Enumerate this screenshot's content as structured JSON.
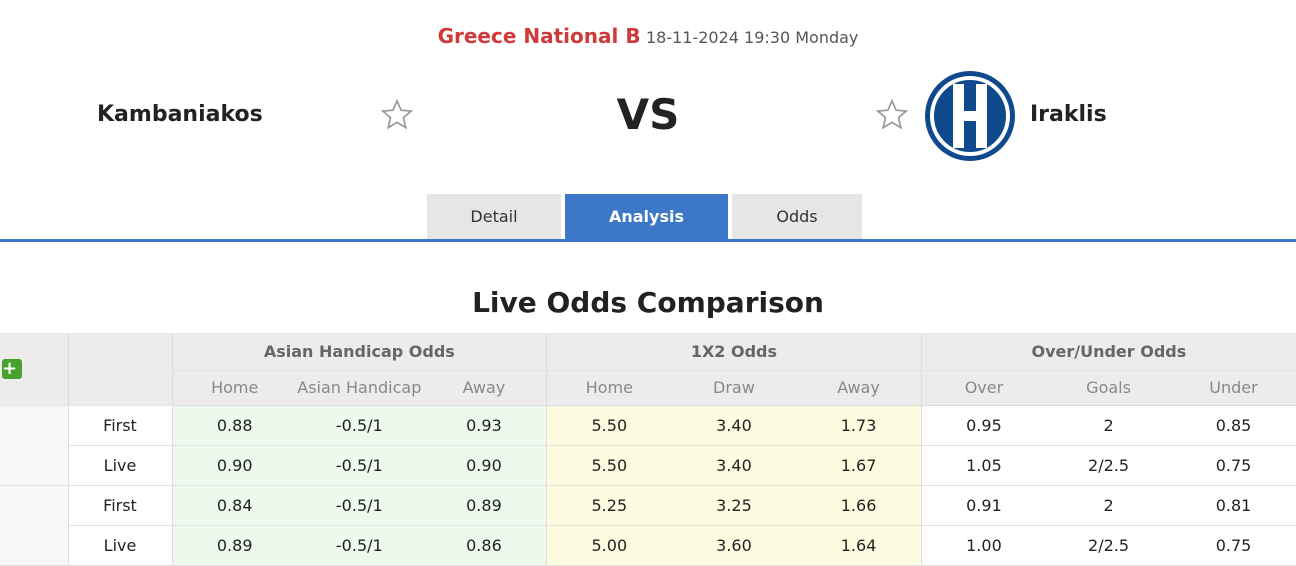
{
  "match": {
    "league": "Greece National B",
    "datetime": "18-11-2024 19:30 Monday",
    "home": "Kambaniakos",
    "away": "Iraklis",
    "vs": "VS"
  },
  "tabs": [
    {
      "label": "Detail"
    },
    {
      "label": "Analysis",
      "active": true
    },
    {
      "label": "Odds"
    }
  ],
  "section_title": "Live Odds Comparison",
  "table": {
    "groups": [
      "Asian Handicap Odds",
      "1X2 Odds",
      "Over/Under Odds"
    ],
    "subheaders": [
      "Home",
      "Asian Handicap",
      "Away",
      "Home",
      "Draw",
      "Away",
      "Over",
      "Goals",
      "Under"
    ],
    "rows": [
      {
        "type": "First",
        "values": [
          "0.88",
          "-0.5/1",
          "0.93",
          "5.50",
          "3.40",
          "1.73",
          "0.95",
          "2",
          "0.85"
        ]
      },
      {
        "type": "Live",
        "values": [
          "0.90",
          "-0.5/1",
          "0.90",
          "5.50",
          "3.40",
          "1.67",
          "1.05",
          "2/2.5",
          "0.75"
        ]
      },
      {
        "type": "First",
        "values": [
          "0.84",
          "-0.5/1",
          "0.89",
          "5.25",
          "3.25",
          "1.66",
          "0.91",
          "2",
          "0.81"
        ]
      },
      {
        "type": "Live",
        "values": [
          "0.89",
          "-0.5/1",
          "0.86",
          "5.00",
          "3.60",
          "1.64",
          "1.00",
          "2/2.5",
          "0.75"
        ]
      }
    ]
  },
  "colors": {
    "accent": "#3d78c8",
    "league": "#d03a3a",
    "plus": "#4aa02c"
  }
}
